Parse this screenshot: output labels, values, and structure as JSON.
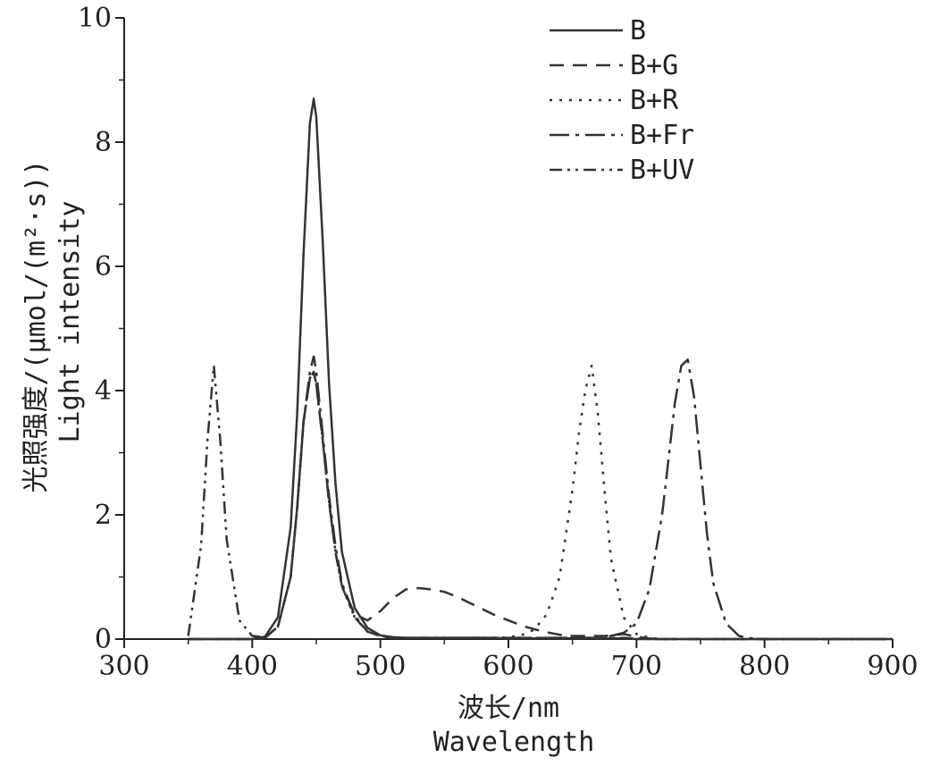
{
  "chart_data": {
    "type": "line",
    "title": "",
    "xlabel_cn": "波长/nm",
    "xlabel_en": "Wavelength",
    "ylabel_cn": "光照强度/(μmol/(m²·s))",
    "ylabel_en": "Light intensity",
    "xlim": [
      300,
      900
    ],
    "ylim": [
      0,
      10
    ],
    "x_ticks": [
      300,
      400,
      500,
      600,
      700,
      800,
      900
    ],
    "y_ticks": [
      0,
      2,
      4,
      6,
      8,
      10
    ],
    "grid": false,
    "legend_position": "top-right",
    "x": [
      350,
      360,
      365,
      370,
      375,
      380,
      390,
      400,
      410,
      420,
      430,
      435,
      440,
      445,
      448,
      450,
      455,
      460,
      465,
      470,
      480,
      490,
      500,
      510,
      520,
      530,
      540,
      550,
      560,
      570,
      580,
      590,
      600,
      610,
      620,
      630,
      640,
      650,
      655,
      660,
      665,
      670,
      675,
      680,
      690,
      700,
      710,
      720,
      725,
      730,
      735,
      740,
      745,
      750,
      755,
      760,
      770,
      780,
      790,
      800,
      850,
      900
    ],
    "series": [
      {
        "name": "B",
        "color": "#333333",
        "dash": "",
        "values": [
          0,
          0,
          0,
          0,
          0,
          0,
          0,
          0,
          0.04,
          0.35,
          1.8,
          3.6,
          6.2,
          8.3,
          8.7,
          8.4,
          6.4,
          4.1,
          2.5,
          1.4,
          0.5,
          0.18,
          0.06,
          0.03,
          0.02,
          0.02,
          0.02,
          0.02,
          0.02,
          0.02,
          0.02,
          0.02,
          0.01,
          0.01,
          0.01,
          0.01,
          0.01,
          0.01,
          0.01,
          0.01,
          0.01,
          0.01,
          0.01,
          0.01,
          0.01,
          0,
          0,
          0,
          0,
          0,
          0,
          0,
          0,
          0,
          0,
          0,
          0,
          0,
          0,
          0,
          0,
          0
        ]
      },
      {
        "name": "B+G",
        "color": "#333333",
        "dash": "16 10",
        "values": [
          0,
          0,
          0,
          0,
          0,
          0,
          0,
          0,
          0.02,
          0.2,
          1.0,
          2.1,
          3.5,
          4.2,
          4.3,
          4.1,
          3.2,
          2.2,
          1.4,
          0.85,
          0.4,
          0.3,
          0.45,
          0.66,
          0.8,
          0.82,
          0.8,
          0.76,
          0.68,
          0.58,
          0.48,
          0.38,
          0.3,
          0.22,
          0.16,
          0.11,
          0.07,
          0.05,
          0.05,
          0.05,
          0.05,
          0.05,
          0.05,
          0.06,
          0.08,
          0.04,
          0.01,
          0,
          0,
          0,
          0,
          0,
          0,
          0,
          0,
          0,
          0,
          0,
          0,
          0,
          0,
          0
        ]
      },
      {
        "name": "B+R",
        "color": "#333333",
        "dash": "3 8",
        "values": [
          0,
          0,
          0,
          0,
          0,
          0,
          0,
          0,
          0.02,
          0.2,
          1.0,
          2.1,
          3.5,
          4.2,
          4.3,
          4.1,
          3.2,
          2.2,
          1.4,
          0.85,
          0.35,
          0.12,
          0.05,
          0.02,
          0.02,
          0.02,
          0.02,
          0.02,
          0.02,
          0.02,
          0.02,
          0.02,
          0.03,
          0.06,
          0.15,
          0.4,
          1.0,
          2.4,
          3.3,
          4.0,
          4.4,
          3.6,
          2.4,
          1.3,
          0.35,
          0.08,
          0.02,
          0,
          0,
          0,
          0,
          0,
          0,
          0,
          0,
          0,
          0,
          0,
          0,
          0,
          0,
          0
        ]
      },
      {
        "name": "B+Fr",
        "color": "#333333",
        "dash": "22 7 4 7",
        "values": [
          0,
          0,
          0,
          0,
          0,
          0,
          0,
          0,
          0.02,
          0.2,
          1.0,
          2.1,
          3.5,
          4.3,
          4.55,
          4.3,
          3.3,
          2.3,
          1.5,
          0.9,
          0.38,
          0.12,
          0.05,
          0.02,
          0.02,
          0.02,
          0.02,
          0.02,
          0.02,
          0.02,
          0.02,
          0.02,
          0.02,
          0.02,
          0.02,
          0.02,
          0.02,
          0.02,
          0.02,
          0.02,
          0.02,
          0.02,
          0.03,
          0.05,
          0.1,
          0.25,
          0.8,
          2.0,
          2.9,
          3.8,
          4.4,
          4.5,
          3.9,
          2.8,
          1.7,
          0.9,
          0.25,
          0.05,
          0.01,
          0,
          0,
          0
        ]
      },
      {
        "name": "B+UV",
        "color": "#333333",
        "dash": "14 6 3 6 3 6",
        "values": [
          0.05,
          1.5,
          3.2,
          4.4,
          3.2,
          1.6,
          0.3,
          0.05,
          0.03,
          0.2,
          1.0,
          2.1,
          3.5,
          4.2,
          4.3,
          4.1,
          3.2,
          2.2,
          1.4,
          0.85,
          0.35,
          0.12,
          0.05,
          0.02,
          0.02,
          0.02,
          0.02,
          0.02,
          0.02,
          0.02,
          0.02,
          0.02,
          0.02,
          0.02,
          0.02,
          0.02,
          0.02,
          0.02,
          0.02,
          0.02,
          0.02,
          0.02,
          0.02,
          0.02,
          0.02,
          0.01,
          0,
          0,
          0,
          0,
          0,
          0,
          0,
          0,
          0,
          0,
          0,
          0,
          0,
          0,
          0,
          0
        ]
      }
    ]
  }
}
